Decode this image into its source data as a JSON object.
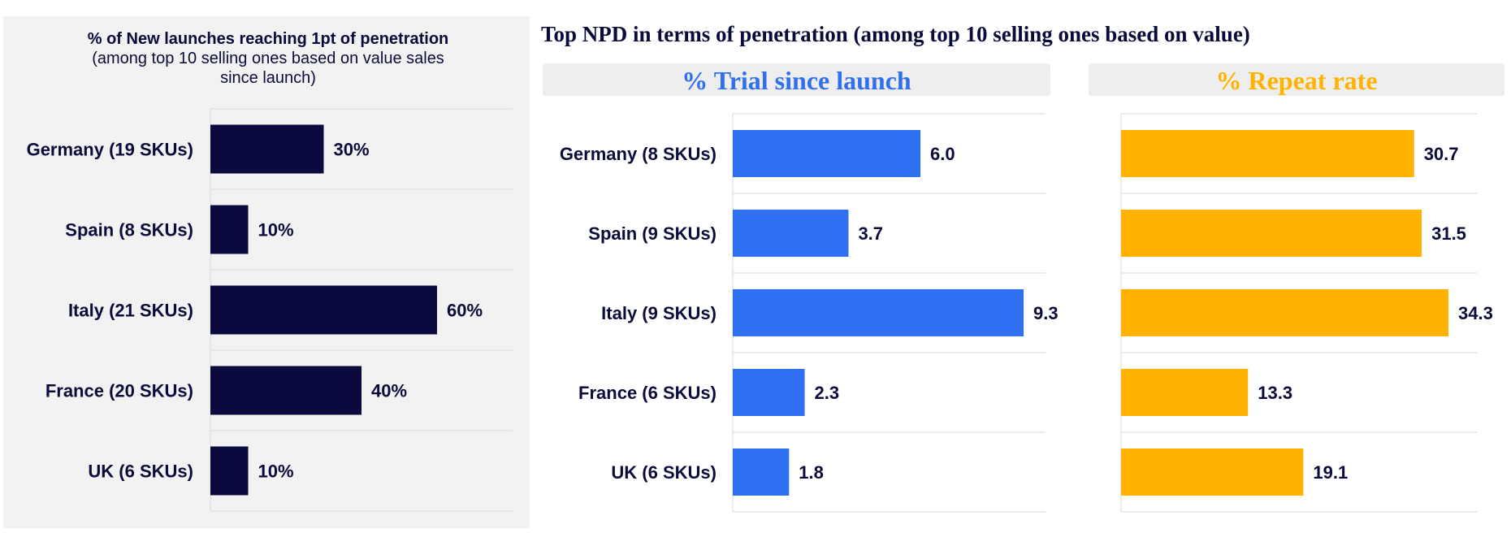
{
  "chart_data": [
    {
      "type": "bar",
      "orientation": "horizontal",
      "title": "% of New launches reaching 1pt of penetration",
      "subtitle": "(among top 10 selling ones based on value sales since launch)",
      "categories": [
        "Germany (19 SKUs)",
        "Spain (8 SKUs)",
        "Italy (21 SKUs)",
        "France (20 SKUs)",
        "UK (6 SKUs)"
      ],
      "values": [
        30,
        10,
        60,
        40,
        10
      ],
      "labels": [
        "30%",
        "10%",
        "60%",
        "40%",
        "10%"
      ],
      "xlim": [
        0,
        80
      ],
      "color": "#0a0a3e",
      "grid": true
    },
    {
      "type": "bar",
      "orientation": "horizontal",
      "title": "% Trial since launch",
      "categories": [
        "Germany (8 SKUs)",
        "Spain (9 SKUs)",
        "Italy (9 SKUs)",
        "France (6 SKUs)",
        "UK (6 SKUs)"
      ],
      "values": [
        6.0,
        3.7,
        9.3,
        2.3,
        1.8
      ],
      "labels": [
        "6.0",
        "3.7",
        "9.3",
        "2.3",
        "1.8"
      ],
      "xlim": [
        0,
        10
      ],
      "color": "#2f6ff2",
      "grid": true
    },
    {
      "type": "bar",
      "orientation": "horizontal",
      "title": "% Repeat rate",
      "categories": [
        "Germany (8 SKUs)",
        "Spain (9 SKUs)",
        "Italy (9 SKUs)",
        "France (6 SKUs)",
        "UK (6 SKUs)"
      ],
      "values": [
        30.7,
        31.5,
        34.3,
        13.3,
        19.1
      ],
      "labels": [
        "30.7",
        "31.5",
        "34.3",
        "13.3",
        "19.1"
      ],
      "xlim": [
        0,
        34.3
      ],
      "color": "#ffb300",
      "grid": true
    }
  ],
  "left_panel": {
    "title": "% of New launches reaching 1pt of penetration",
    "subtitle": "(among top 10 selling ones based on value sales since launch)"
  },
  "header": {
    "title": "Top NPD in terms of penetration (among top 10 selling ones based on value)",
    "trial_label": "% Trial since launch",
    "repeat_label": "% Repeat rate"
  }
}
